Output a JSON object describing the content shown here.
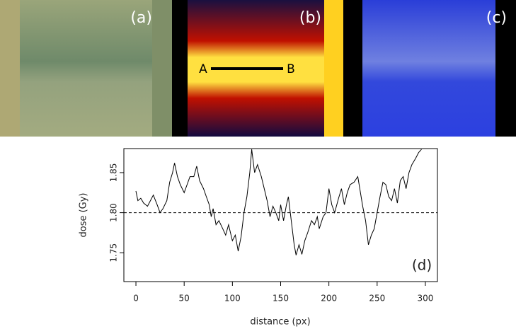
{
  "panels": {
    "a": "(a)",
    "b": "(b)",
    "c": "(c)",
    "A": "A",
    "B": "B"
  },
  "chart_data": {
    "type": "line",
    "label": "(d)",
    "xlabel": "distance (px)",
    "ylabel": "dose (Gy)",
    "xlim": [
      -12.5,
      312.5
    ],
    "ylim": [
      1.714,
      1.88
    ],
    "xticks": [
      0,
      50,
      100,
      150,
      200,
      250,
      300
    ],
    "yticks": [
      1.75,
      {
        "value": 1.8,
        "label": "1.80"
      },
      1.85
    ],
    "hline": 1.8,
    "x": [
      0,
      2,
      5,
      8,
      12,
      15,
      18,
      22,
      25,
      28,
      32,
      35,
      38,
      40,
      43,
      46,
      50,
      53,
      56,
      60,
      63,
      66,
      70,
      73,
      76,
      78,
      80,
      83,
      86,
      90,
      93,
      96,
      100,
      103,
      106,
      109,
      112,
      115,
      118,
      120,
      123,
      126,
      130,
      133,
      136,
      139,
      142,
      145,
      148,
      150,
      153,
      156,
      158,
      161,
      164,
      166,
      169,
      172,
      175,
      178,
      182,
      185,
      188,
      190,
      194,
      197,
      200,
      203,
      206,
      210,
      213,
      216,
      219,
      222,
      226,
      230,
      232,
      235,
      238,
      241,
      244,
      247,
      250,
      253,
      256,
      259,
      262,
      265,
      268,
      271,
      274,
      277,
      280,
      283,
      286,
      290,
      293,
      296
    ],
    "series": [
      {
        "color": "#000000",
        "values": [
          1.827,
          1.815,
          1.818,
          1.812,
          1.808,
          1.815,
          1.822,
          1.81,
          1.8,
          1.805,
          1.815,
          1.838,
          1.85,
          1.862,
          1.845,
          1.835,
          1.825,
          1.835,
          1.845,
          1.845,
          1.858,
          1.84,
          1.83,
          1.82,
          1.81,
          1.795,
          1.805,
          1.785,
          1.79,
          1.78,
          1.772,
          1.785,
          1.765,
          1.772,
          1.752,
          1.77,
          1.8,
          1.82,
          1.85,
          1.879,
          1.85,
          1.86,
          1.845,
          1.83,
          1.815,
          1.795,
          1.808,
          1.8,
          1.79,
          1.81,
          1.79,
          1.81,
          1.82,
          1.79,
          1.76,
          1.747,
          1.76,
          1.748,
          1.765,
          1.775,
          1.79,
          1.785,
          1.795,
          1.78,
          1.795,
          1.8,
          1.83,
          1.81,
          1.8,
          1.818,
          1.83,
          1.81,
          1.825,
          1.835,
          1.838,
          1.845,
          1.83,
          1.808,
          1.79,
          1.76,
          1.772,
          1.78,
          1.8,
          1.82,
          1.838,
          1.835,
          1.82,
          1.815,
          1.83,
          1.812,
          1.84,
          1.845,
          1.83,
          1.85,
          1.86,
          1.868,
          1.875,
          1.879
        ]
      }
    ]
  }
}
